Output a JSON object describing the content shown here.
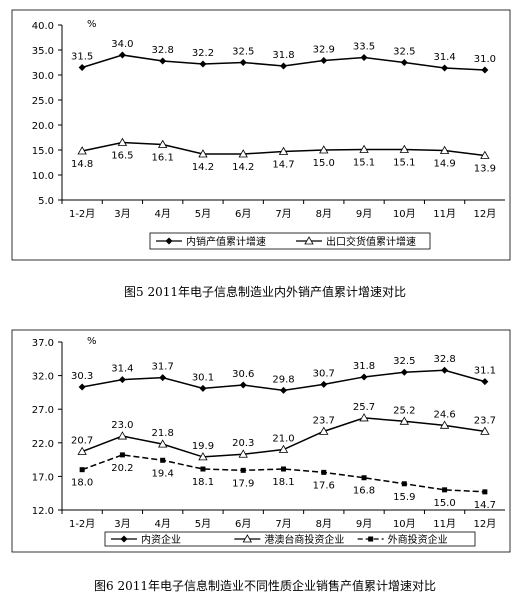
{
  "chart_data": [
    {
      "type": "line",
      "title": "图5 2011年电子信息制造业内外销产值累计增速对比",
      "unit": "%",
      "categories": [
        "1-2月",
        "3月",
        "4月",
        "5月",
        "6月",
        "7月",
        "8月",
        "9月",
        "10月",
        "11月",
        "12月"
      ],
      "ylim": [
        5,
        40
      ],
      "yticks": [
        {
          "value": 5,
          "label": "5.0"
        },
        {
          "value": 10,
          "label": "10.0"
        },
        {
          "value": 15,
          "label": "15.0"
        },
        {
          "value": 20,
          "label": "20.0"
        },
        {
          "value": 25,
          "label": "25.0"
        },
        {
          "value": 30,
          "label": "30.0"
        },
        {
          "value": 35,
          "label": "35.0"
        },
        {
          "value": 40,
          "label": "40.0"
        }
      ],
      "series": [
        {
          "name": "内销产值累计增速",
          "color": "#000000",
          "marker": "diamond",
          "values": [
            31.5,
            34.0,
            32.8,
            32.2,
            32.5,
            31.8,
            32.9,
            33.5,
            32.5,
            31.4,
            31.0
          ],
          "value_labels": [
            "31.5",
            "34.0",
            "32.8",
            "32.2",
            "32.5",
            "31.8",
            "32.9",
            "33.5",
            "32.5",
            "31.4",
            "31.0"
          ]
        },
        {
          "name": "出口交货值累计增速",
          "color": "#000000",
          "marker": "triangle",
          "values": [
            14.8,
            16.5,
            16.1,
            14.2,
            14.2,
            14.7,
            15.0,
            15.1,
            15.1,
            14.9,
            13.9
          ],
          "value_labels": [
            "14.8",
            "16.5",
            "16.1",
            "14.2",
            "14.2",
            "14.7",
            "15.0",
            "15.1",
            "15.1",
            "14.9",
            "13.9"
          ]
        }
      ]
    },
    {
      "type": "line",
      "title": "图6 2011年电子信息制造业不同性质企业销售产值累计增速对比",
      "unit": "%",
      "categories": [
        "1-2月",
        "3月",
        "4月",
        "5月",
        "6月",
        "7月",
        "8月",
        "9月",
        "10月",
        "11月",
        "12月"
      ],
      "ylim": [
        12,
        37
      ],
      "yticks": [
        {
          "value": 12,
          "label": "12.0"
        },
        {
          "value": 17,
          "label": "17.0"
        },
        {
          "value": 22,
          "label": "22.0"
        },
        {
          "value": 27,
          "label": "27.0"
        },
        {
          "value": 32,
          "label": "32.0"
        },
        {
          "value": 37,
          "label": "37.0"
        }
      ],
      "series": [
        {
          "name": "内资企业",
          "color": "#000000",
          "marker": "diamond",
          "values": [
            30.3,
            31.4,
            31.7,
            30.1,
            30.6,
            29.8,
            30.7,
            31.8,
            32.5,
            32.8,
            31.1
          ],
          "value_labels": [
            "30.3",
            "31.4",
            "31.7",
            "30.1",
            "30.6",
            "29.8",
            "30.7",
            "31.8",
            "32.5",
            "32.8",
            "31.1"
          ]
        },
        {
          "name": "港澳台商投资企业",
          "color": "#000000",
          "marker": "triangle",
          "values": [
            20.7,
            23.0,
            21.8,
            19.9,
            20.3,
            21.0,
            23.7,
            25.7,
            25.2,
            24.6,
            23.7
          ],
          "value_labels": [
            "20.7",
            "23.0",
            "21.8",
            "19.9",
            "20.3",
            "21.0",
            "23.7",
            "25.7",
            "25.2",
            "24.6",
            "23.7"
          ]
        },
        {
          "name": "外商投资企业",
          "color": "#000000",
          "marker": "square",
          "dash": true,
          "values": [
            18.0,
            20.2,
            19.4,
            18.1,
            17.9,
            18.1,
            17.6,
            16.8,
            15.9,
            15.0,
            14.7
          ],
          "value_labels": [
            "18.0",
            "20.2",
            "19.4",
            "18.1",
            "17.9",
            "18.1",
            "17.6",
            "16.8",
            "15.9",
            "15.0",
            "14.7"
          ]
        }
      ]
    }
  ]
}
